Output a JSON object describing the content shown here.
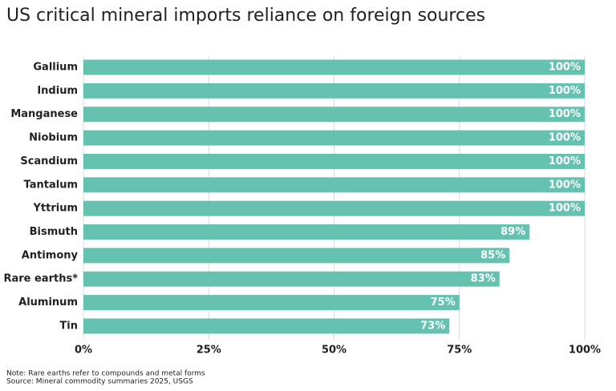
{
  "chart_data": {
    "type": "hbar",
    "title": "US critical mineral imports reliance on foreign sources",
    "categories": [
      "Gallium",
      "Indium",
      "Manganese",
      "Niobium",
      "Scandium",
      "Tantalum",
      "Yttrium",
      "Bismuth",
      "Antimony",
      "Rare earths*",
      "Aluminum",
      "Tin"
    ],
    "values": [
      100,
      100,
      100,
      100,
      100,
      100,
      100,
      89,
      85,
      83,
      75,
      73
    ],
    "value_labels": [
      "100%",
      "100%",
      "100%",
      "100%",
      "100%",
      "100%",
      "100%",
      "89%",
      "85%",
      "83%",
      "75%",
      "73%"
    ],
    "color": "#66c2b0",
    "xlim": [
      0,
      100
    ],
    "xticks": [
      {
        "value": 0,
        "label": "0%"
      },
      {
        "value": 25,
        "label": "25%"
      },
      {
        "value": 50,
        "label": "50%"
      },
      {
        "value": 75,
        "label": "75%"
      },
      {
        "value": 100,
        "label": "100%"
      }
    ],
    "grid": true,
    "note": "Note: Rare earths refer to compounds and metal forms",
    "source": "Source: Mineral commodity summaries 2025, USGS"
  }
}
